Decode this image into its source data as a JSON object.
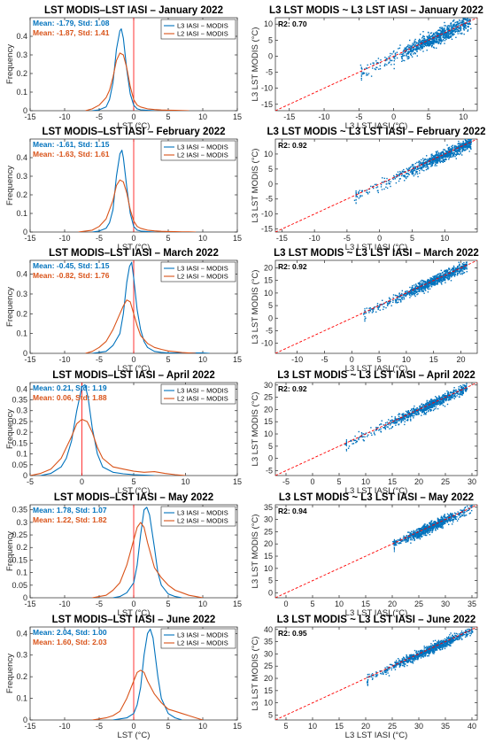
{
  "colors": {
    "l3": "#0072BD",
    "l2": "#D95319",
    "zero_line": "#FF0000",
    "one_to_one": "#FF0000",
    "scatter": "#0072BD"
  },
  "hist_ylabel": "Frequency",
  "hist_xlabel": "LST (°C)",
  "scatter_ylabel": "L3 LST MODIS (°C)",
  "scatter_xlabel": "L3 LST IASI (°C)",
  "legend": {
    "l3": "L3 IASI − MODIS",
    "l2": "L2 IASI − MODIS"
  },
  "chart_data": [
    {
      "type": "line",
      "panel": "hist",
      "title": "LST MODIS–LST IASI – January 2022",
      "xlim": [
        -15,
        15
      ],
      "ylim": [
        0,
        0.5
      ],
      "xticks": [
        -15,
        -10,
        -5,
        0,
        5,
        10,
        15
      ],
      "yticks": [
        0,
        0.1,
        0.2,
        0.3,
        0.4
      ],
      "stats": [
        "Mean: -1.79, Std: 1.08",
        "Mean: -1.87, Std: 1.41"
      ],
      "series": [
        {
          "name": "L3 IASI − MODIS",
          "x": [
            -6,
            -5,
            -4,
            -3.5,
            -3,
            -2.5,
            -2,
            -1.8,
            -1.5,
            -1,
            -0.5,
            0,
            0.5,
            1,
            2,
            3
          ],
          "y": [
            0,
            0.005,
            0.02,
            0.06,
            0.15,
            0.33,
            0.43,
            0.44,
            0.39,
            0.22,
            0.09,
            0.03,
            0.01,
            0.005,
            0.002,
            0
          ]
        },
        {
          "name": "L2 IASI − MODIS",
          "x": [
            -7,
            -6,
            -5,
            -4,
            -3.5,
            -3,
            -2.5,
            -2,
            -1.5,
            -1,
            -0.5,
            0,
            0.5,
            1,
            2,
            3,
            4,
            5,
            6,
            7,
            8
          ],
          "y": [
            0,
            0.01,
            0.03,
            0.07,
            0.11,
            0.18,
            0.27,
            0.31,
            0.3,
            0.23,
            0.13,
            0.06,
            0.03,
            0.02,
            0.01,
            0.006,
            0.004,
            0.003,
            0.002,
            0.001,
            0
          ]
        }
      ]
    },
    {
      "type": "scatter",
      "panel": "scatter",
      "title": "L3 LST MODIS ~ L3 LST IASI – January 2022",
      "xlim": [
        -17,
        12
      ],
      "ylim": [
        -17,
        12
      ],
      "xticks": [
        -15,
        -10,
        -5,
        0,
        5,
        10
      ],
      "yticks": [
        -15,
        -10,
        -5,
        0,
        5,
        10
      ],
      "r2": "R2: 0.70",
      "cluster": {
        "x_range": [
          -5,
          11
        ],
        "center": [
          6,
          8
        ],
        "spread": 1.2,
        "density_start": 1
      }
    },
    {
      "type": "line",
      "panel": "hist",
      "title": "LST MODIS–LST IASI – February 2022",
      "xlim": [
        -15,
        15
      ],
      "ylim": [
        0,
        0.5
      ],
      "xticks": [
        -15,
        -10,
        -5,
        0,
        5,
        10,
        15
      ],
      "yticks": [
        0,
        0.1,
        0.2,
        0.3,
        0.4
      ],
      "stats": [
        "Mean: -1.61, Std: 1.15",
        "Mean: -1.63, Std: 1.61"
      ],
      "series": [
        {
          "name": "L3 IASI − MODIS",
          "x": [
            -6,
            -5,
            -4,
            -3.5,
            -3,
            -2.5,
            -2,
            -1.7,
            -1.5,
            -1,
            -0.5,
            0,
            0.5,
            1,
            2,
            3
          ],
          "y": [
            0,
            0.005,
            0.02,
            0.05,
            0.12,
            0.3,
            0.42,
            0.44,
            0.4,
            0.24,
            0.1,
            0.03,
            0.01,
            0.005,
            0.002,
            0
          ]
        },
        {
          "name": "L2 IASI − MODIS",
          "x": [
            -8,
            -7,
            -6,
            -5,
            -4,
            -3,
            -2.5,
            -2,
            -1.5,
            -1,
            -0.5,
            0,
            0.5,
            1,
            2,
            3,
            4,
            5,
            6,
            7,
            8,
            9
          ],
          "y": [
            0,
            0.005,
            0.01,
            0.03,
            0.07,
            0.17,
            0.25,
            0.28,
            0.27,
            0.21,
            0.12,
            0.06,
            0.03,
            0.02,
            0.01,
            0.006,
            0.004,
            0.003,
            0.002,
            0.001,
            0.001,
            0
          ]
        }
      ]
    },
    {
      "type": "scatter",
      "panel": "scatter",
      "title": "L3 LST MODIS ~ L3 LST IASI – February 2022",
      "xlim": [
        -16,
        15
      ],
      "ylim": [
        -16,
        15
      ],
      "xticks": [
        -15,
        -10,
        -5,
        0,
        5,
        10
      ],
      "yticks": [
        -15,
        -10,
        -5,
        0,
        5,
        10
      ],
      "r2": "R2: 0.92",
      "cluster": {
        "x_range": [
          -4,
          14
        ],
        "center": [
          10,
          10
        ],
        "spread": 1.0,
        "density_start": 5
      }
    },
    {
      "type": "line",
      "panel": "hist",
      "title": "LST MODIS–LST IASI – March 2022",
      "xlim": [
        -15,
        15
      ],
      "ylim": [
        0,
        0.47
      ],
      "xticks": [
        -15,
        -10,
        -5,
        0,
        5,
        10,
        15
      ],
      "yticks": [
        0,
        0.1,
        0.2,
        0.3,
        0.4
      ],
      "stats": [
        "Mean: -0.45, Std: 1.15",
        "Mean: -0.82, Std: 1.76"
      ],
      "series": [
        {
          "name": "L3 IASI − MODIS",
          "x": [
            -6,
            -5,
            -4,
            -3,
            -2,
            -1.5,
            -1,
            -0.6,
            -0.3,
            0,
            0.5,
            1,
            1.5,
            2,
            3,
            4,
            5,
            10,
            11
          ],
          "y": [
            0,
            0.005,
            0.01,
            0.04,
            0.1,
            0.2,
            0.36,
            0.44,
            0.46,
            0.38,
            0.22,
            0.12,
            0.06,
            0.03,
            0.01,
            0.005,
            0.002,
            0.002,
            0
          ]
        },
        {
          "name": "L2 IASI − MODIS",
          "x": [
            -7,
            -6,
            -5,
            -4,
            -3,
            -2,
            -1.5,
            -1,
            -0.5,
            0,
            0.5,
            1,
            2,
            3,
            4,
            5,
            6,
            7,
            8,
            9
          ],
          "y": [
            0,
            0.01,
            0.03,
            0.06,
            0.12,
            0.2,
            0.24,
            0.27,
            0.26,
            0.2,
            0.14,
            0.09,
            0.05,
            0.03,
            0.02,
            0.012,
            0.008,
            0.004,
            0.002,
            0
          ]
        }
      ]
    },
    {
      "type": "scatter",
      "panel": "scatter",
      "title": "L3 LST MODIS ~ L3 LST IASI – March 2022",
      "xlim": [
        -14,
        23
      ],
      "ylim": [
        -14,
        23
      ],
      "xticks": [
        -10,
        -5,
        0,
        5,
        10,
        15,
        20
      ],
      "yticks": [
        -10,
        -5,
        0,
        5,
        10,
        15,
        20
      ],
      "r2": "R2: 0.92",
      "cluster": {
        "x_range": [
          2,
          21
        ],
        "center": [
          15,
          15
        ],
        "spread": 1.0,
        "density_start": 7
      }
    },
    {
      "type": "line",
      "panel": "hist",
      "title": "LST MODIS–LST IASI – April 2022",
      "xlim": [
        -5,
        15
      ],
      "ylim": [
        0,
        0.43
      ],
      "xticks": [
        -5,
        0,
        5,
        10,
        15
      ],
      "yticks": [
        0,
        0.05,
        0.1,
        0.15,
        0.2,
        0.25,
        0.3,
        0.35,
        0.4
      ],
      "stats": [
        "Mean: 0.21, Std: 1.19",
        "Mean: 0.06, Std: 1.88"
      ],
      "series": [
        {
          "name": "L3 IASI − MODIS",
          "x": [
            -4,
            -3,
            -2,
            -1.5,
            -1,
            -0.5,
            0,
            0.3,
            0.6,
            1,
            1.5,
            2,
            3,
            4,
            5,
            6,
            7
          ],
          "y": [
            0,
            0.01,
            0.04,
            0.08,
            0.16,
            0.3,
            0.41,
            0.42,
            0.36,
            0.22,
            0.1,
            0.04,
            0.015,
            0.008,
            0.004,
            0.002,
            0
          ]
        },
        {
          "name": "L2 IASI − MODIS",
          "x": [
            -5,
            -4,
            -3,
            -2,
            -1,
            -0.5,
            0,
            0.5,
            1,
            1.5,
            2,
            3,
            4,
            5,
            6,
            7,
            8,
            9,
            10
          ],
          "y": [
            0,
            0.01,
            0.03,
            0.08,
            0.18,
            0.24,
            0.26,
            0.25,
            0.2,
            0.13,
            0.08,
            0.04,
            0.03,
            0.02,
            0.015,
            0.018,
            0.01,
            0.004,
            0
          ]
        }
      ]
    },
    {
      "type": "scatter",
      "panel": "scatter",
      "title": "L3 LST MODIS ~ L3 LST IASI – April 2022",
      "xlim": [
        -7,
        31
      ],
      "ylim": [
        -7,
        31
      ],
      "xticks": [
        -5,
        0,
        5,
        10,
        15,
        20,
        25,
        30
      ],
      "yticks": [
        -5,
        0,
        5,
        10,
        15,
        20,
        25,
        30
      ],
      "r2": "R2: 0.92",
      "cluster": {
        "x_range": [
          6,
          29
        ],
        "center": [
          22,
          22
        ],
        "spread": 1.0,
        "density_start": 12
      }
    },
    {
      "type": "line",
      "panel": "hist",
      "title": "LST MODIS–LST IASI – May 2022",
      "xlim": [
        -15,
        15
      ],
      "ylim": [
        0,
        0.37
      ],
      "xticks": [
        -15,
        -10,
        -5,
        0,
        5,
        10,
        15
      ],
      "yticks": [
        0,
        0.05,
        0.1,
        0.15,
        0.2,
        0.25,
        0.3,
        0.35
      ],
      "stats": [
        "Mean: 1.78, Std: 1.07",
        "Mean: 1.22, Std: 1.82"
      ],
      "series": [
        {
          "name": "L3 IASI − MODIS",
          "x": [
            -3,
            -2,
            -1,
            0,
            0.5,
            1,
            1.5,
            1.9,
            2.3,
            3,
            3.5,
            4,
            5,
            6,
            7
          ],
          "y": [
            0,
            0.005,
            0.02,
            0.06,
            0.13,
            0.25,
            0.35,
            0.36,
            0.33,
            0.2,
            0.1,
            0.05,
            0.015,
            0.005,
            0
          ]
        },
        {
          "name": "L2 IASI − MODIS",
          "x": [
            -6,
            -5,
            -4,
            -3,
            -2,
            -1,
            0,
            0.5,
            1,
            1.5,
            2,
            3,
            4,
            5,
            6,
            7,
            8,
            9,
            10
          ],
          "y": [
            0,
            0.005,
            0.01,
            0.03,
            0.06,
            0.13,
            0.23,
            0.28,
            0.3,
            0.28,
            0.22,
            0.12,
            0.08,
            0.05,
            0.03,
            0.02,
            0.01,
            0.005,
            0
          ]
        }
      ]
    },
    {
      "type": "scatter",
      "panel": "scatter",
      "title": "L3 LST MODIS ~ L3 LST IASI – May 2022",
      "xlim": [
        -2,
        36
      ],
      "ylim": [
        -2,
        36
      ],
      "xticks": [
        0,
        5,
        10,
        15,
        20,
        25,
        30,
        35
      ],
      "yticks": [
        0,
        5,
        10,
        15,
        20,
        25,
        30,
        35
      ],
      "r2": "R2: 0.94",
      "cluster": {
        "x_range": [
          20,
          35
        ],
        "center": [
          27,
          27
        ],
        "spread": 0.9,
        "density_start": 20
      }
    },
    {
      "type": "line",
      "panel": "hist",
      "title": "LST MODIS–LST IASI – June 2022",
      "xlim": [
        -15,
        15
      ],
      "ylim": [
        0,
        0.43
      ],
      "xticks": [
        -15,
        -10,
        -5,
        0,
        5,
        10,
        15
      ],
      "yticks": [
        0,
        0.1,
        0.2,
        0.3,
        0.4
      ],
      "stats": [
        "Mean: 2.04, Std: 1.00",
        "Mean: 1.60, Std: 2.03"
      ],
      "series": [
        {
          "name": "L3 IASI − MODIS",
          "x": [
            -3,
            -1,
            0,
            0.5,
            1,
            1.5,
            2,
            2.4,
            2.8,
            3.5,
            4,
            5,
            6,
            7
          ],
          "y": [
            0,
            0.01,
            0.03,
            0.07,
            0.15,
            0.3,
            0.4,
            0.42,
            0.38,
            0.2,
            0.1,
            0.03,
            0.01,
            0
          ]
        },
        {
          "name": "L2 IASI − MODIS",
          "x": [
            -6,
            -5,
            -4,
            -3,
            -2,
            -1,
            0,
            0.5,
            1,
            1.5,
            2,
            3,
            4,
            5,
            6,
            7,
            8,
            9,
            10
          ],
          "y": [
            0,
            0.005,
            0.01,
            0.02,
            0.04,
            0.1,
            0.18,
            0.22,
            0.23,
            0.22,
            0.18,
            0.12,
            0.08,
            0.05,
            0.04,
            0.03,
            0.02,
            0.01,
            0
          ]
        }
      ]
    },
    {
      "type": "scatter",
      "panel": "scatter",
      "title": "L3 LST MODIS ~ L3 LST IASI – June 2022",
      "xlim": [
        3,
        41
      ],
      "ylim": [
        3,
        41
      ],
      "xticks": [
        5,
        10,
        15,
        20,
        25,
        30,
        35,
        40
      ],
      "yticks": [
        5,
        10,
        15,
        20,
        25,
        30,
        35,
        40
      ],
      "r2": "R2: 0.95",
      "cluster": {
        "x_range": [
          20,
          40
        ],
        "center": [
          32,
          32
        ],
        "spread": 0.9,
        "density_start": 25
      }
    }
  ]
}
